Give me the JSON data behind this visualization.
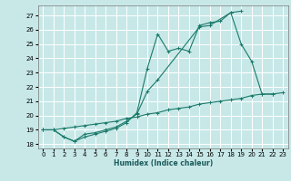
{
  "xlabel": "Humidex (Indice chaleur)",
  "background_color": "#c8e8e8",
  "grid_color": "#ffffff",
  "line_color": "#1a7a6a",
  "xlim": [
    -0.5,
    23.5
  ],
  "ylim": [
    17.7,
    27.7
  ],
  "xticks": [
    0,
    1,
    2,
    3,
    4,
    5,
    6,
    7,
    8,
    9,
    10,
    11,
    12,
    13,
    14,
    15,
    16,
    17,
    18,
    19,
    20,
    21,
    22,
    23
  ],
  "yticks": [
    18,
    19,
    20,
    21,
    22,
    23,
    24,
    25,
    26,
    27
  ],
  "line1_x": [
    0,
    1,
    2,
    3,
    4,
    5,
    6,
    7,
    8,
    9,
    10,
    11,
    12,
    13,
    14,
    15,
    16,
    17,
    18,
    19
  ],
  "line1_y": [
    19.0,
    19.0,
    18.5,
    18.2,
    18.5,
    18.7,
    18.9,
    19.1,
    19.5,
    20.2,
    23.3,
    25.7,
    24.5,
    24.7,
    24.5,
    26.3,
    26.5,
    26.6,
    27.2,
    27.3
  ],
  "line2_x": [
    0,
    1,
    2,
    3,
    4,
    5,
    6,
    7,
    8,
    9,
    10,
    11,
    15,
    16,
    18,
    19,
    20,
    21,
    22
  ],
  "line2_y": [
    19.0,
    19.0,
    18.5,
    18.2,
    18.7,
    18.8,
    19.0,
    19.2,
    19.6,
    20.1,
    21.7,
    22.5,
    26.2,
    26.3,
    27.2,
    25.0,
    23.8,
    21.5,
    21.5
  ],
  "line3_x": [
    0,
    1,
    2,
    3,
    4,
    5,
    6,
    7,
    8,
    9,
    10,
    11,
    12,
    13,
    14,
    15,
    16,
    17,
    18,
    19,
    20,
    21,
    22,
    23
  ],
  "line3_y": [
    19.0,
    19.0,
    19.1,
    19.2,
    19.3,
    19.4,
    19.5,
    19.6,
    19.8,
    19.9,
    20.1,
    20.2,
    20.4,
    20.5,
    20.6,
    20.8,
    20.9,
    21.0,
    21.1,
    21.2,
    21.4,
    21.5,
    21.5,
    21.6
  ]
}
